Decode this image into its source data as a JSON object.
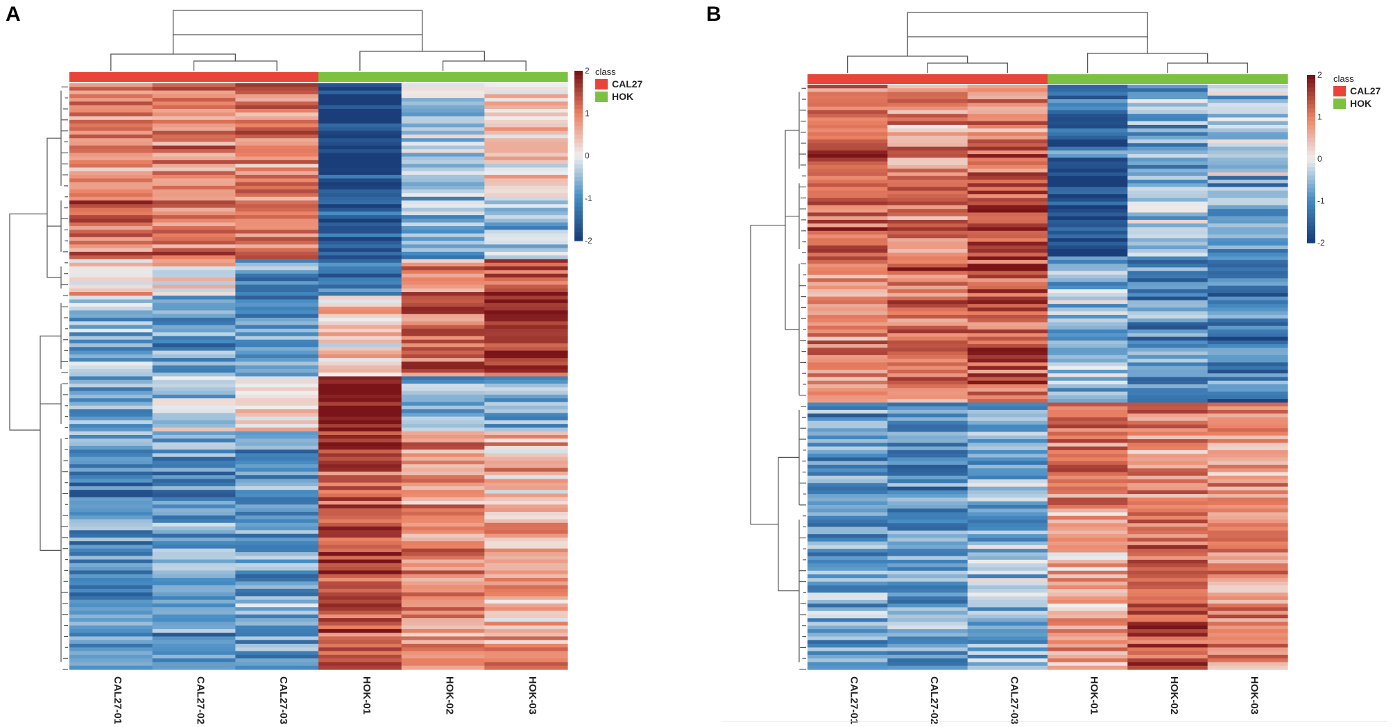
{
  "figure": {
    "background": "#ffffff",
    "colors": {
      "cal27": "#e8443a",
      "hok": "#7dc142",
      "low": "#1a3e7a",
      "mid": "#eeeeee",
      "high": "#7a1418",
      "tree": "#555555"
    }
  },
  "chart_data": [
    {
      "type": "heatmap",
      "panel": "A",
      "columns": [
        "CAL27-01",
        "CAL27-02",
        "CAL27-03",
        "HOK-01",
        "HOK-02",
        "HOK-03"
      ],
      "column_classes": [
        "CAL27",
        "CAL27",
        "CAL27",
        "HOK",
        "HOK",
        "HOK"
      ],
      "legend": {
        "title": "class",
        "entries": [
          "CAL27",
          "HOK"
        ]
      },
      "color_scale": {
        "min": -2,
        "max": 2,
        "ticks": [
          "2",
          "1",
          "0",
          "-1",
          "-2"
        ]
      },
      "row_count": 160,
      "row_blocks": [
        {
          "rows": 30,
          "values": [
            0.9,
            1.0,
            1.0,
            -2.0,
            -0.4,
            0.3
          ]
        },
        {
          "rows": 18,
          "values": [
            1.2,
            1.1,
            1.1,
            -1.7,
            -0.7,
            -0.5
          ]
        },
        {
          "rows": 10,
          "values": [
            0.5,
            0.3,
            -0.8,
            -1.2,
            1.0,
            1.5
          ]
        },
        {
          "rows": 22,
          "values": [
            -0.6,
            -0.8,
            -1.0,
            0.5,
            1.3,
            1.7
          ]
        },
        {
          "rows": 15,
          "values": [
            -0.8,
            -0.3,
            0.2,
            1.8,
            -0.8,
            -0.7
          ]
        },
        {
          "rows": 65,
          "values": [
            -1.0,
            -0.9,
            -0.8,
            1.5,
            0.9,
            0.6
          ]
        }
      ],
      "column_dendrogram": "((CAL27-01,(CAL27-02,CAL27-03)),(HOK-01,(HOK-02,HOK-03)))"
    },
    {
      "type": "heatmap",
      "panel": "B",
      "columns": [
        "CAL27-01",
        "CAL27-02",
        "CAL27-03",
        "HOK-01",
        "HOK-02",
        "HOK-03"
      ],
      "column_classes": [
        "CAL27",
        "CAL27",
        "CAL27",
        "HOK",
        "HOK",
        "HOK"
      ],
      "legend": {
        "title": "class",
        "entries": [
          "CAL27",
          "HOK"
        ]
      },
      "color_scale": {
        "min": -2,
        "max": 2,
        "ticks": [
          "2",
          "1",
          "0",
          "-1",
          "-2"
        ]
      },
      "row_count": 160,
      "row_blocks": [
        {
          "rows": 25,
          "values": [
            1.2,
            0.9,
            1.1,
            -1.4,
            -0.7,
            -0.4
          ]
        },
        {
          "rows": 22,
          "values": [
            1.2,
            1.1,
            1.5,
            -1.8,
            -0.5,
            -0.8
          ]
        },
        {
          "rows": 40,
          "values": [
            1.0,
            1.2,
            1.4,
            -0.6,
            -1.0,
            -1.1
          ]
        },
        {
          "rows": 30,
          "values": [
            -0.9,
            -1.0,
            -0.7,
            1.2,
            1.0,
            0.8
          ]
        },
        {
          "rows": 43,
          "values": [
            -0.8,
            -0.9,
            -0.6,
            0.6,
            1.4,
            1.0
          ]
        }
      ],
      "column_dendrogram": "((CAL27-01,(CAL27-02,CAL27-03)),(HOK-01,(HOK-02,HOK-03)))"
    }
  ]
}
